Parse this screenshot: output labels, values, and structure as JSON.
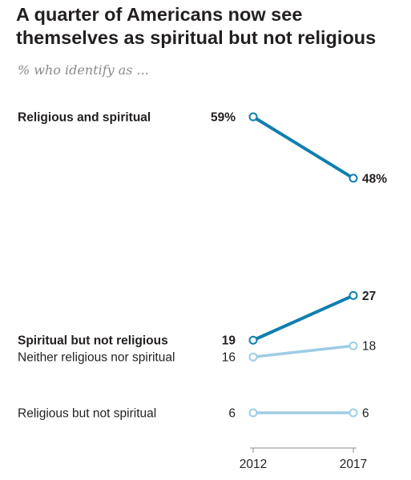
{
  "chart_data": {
    "type": "line",
    "title": "A quarter of Americans now see themselves as spiritual but not religious",
    "subtitle": "% who identify as ...",
    "x": [
      "2012",
      "2017"
    ],
    "ylim": [
      0,
      65
    ],
    "grid": false,
    "series": [
      {
        "name": "Religious and spiritual",
        "values": [
          59,
          48
        ],
        "labels": [
          "59%",
          "48%"
        ],
        "color": "#0f7fae",
        "emphasis": true
      },
      {
        "name": "Spiritual but not religious",
        "values": [
          19,
          27
        ],
        "labels": [
          "19",
          "27"
        ],
        "color": "#0f7fae",
        "emphasis": true
      },
      {
        "name": "Neither religious nor spiritual",
        "values": [
          16,
          18
        ],
        "labels": [
          "16",
          "18"
        ],
        "color": "#9dcde6",
        "emphasis": false
      },
      {
        "name": "Religious but not spiritual",
        "values": [
          6,
          6
        ],
        "labels": [
          "6",
          "6"
        ],
        "color": "#9dcde6",
        "emphasis": false
      }
    ]
  }
}
